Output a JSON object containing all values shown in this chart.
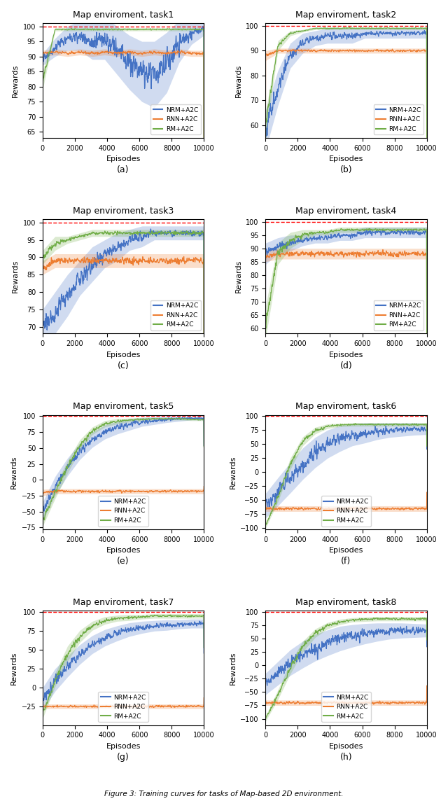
{
  "titles": [
    "Map enviroment, task1",
    "Map enviroment, task2",
    "Map enviroment, task3",
    "Map enviroment, task4",
    "Map enviroment, task5",
    "Map enviroment, task6",
    "Map enviroment, task7",
    "Map enviroment, task8"
  ],
  "subtitles": [
    "(a)",
    "(b)",
    "(c)",
    "(d)",
    "(e)",
    "(f)",
    "(g)",
    "(h)"
  ],
  "xlabel": "Episodes",
  "ylabel": "Rewards",
  "hline_color": "#ff0000",
  "colors": {
    "NRM": "#4472c4",
    "RNN": "#ed7d31",
    "RM": "#70ad47"
  },
  "tasks": {
    "task1": {
      "ylim": [
        63,
        101
      ],
      "yticks": [
        65,
        70,
        75,
        80,
        85,
        90,
        95,
        100
      ],
      "NRM_mean_knots": [
        89,
        93,
        96,
        97,
        95,
        96,
        92,
        88,
        85,
        84,
        88,
        95,
        98,
        99
      ],
      "NRM_std_knots": [
        2,
        3,
        4,
        5,
        6,
        7,
        8,
        9,
        10,
        11,
        10,
        7,
        4,
        2
      ],
      "RNN_mean_knots": [
        91,
        91.5,
        91,
        91.5,
        91,
        91.5,
        91,
        91.5,
        91,
        91.5,
        91,
        91.5,
        91,
        91
      ],
      "RNN_std_knots": [
        1,
        1,
        1,
        1,
        1,
        1,
        1,
        1,
        1,
        1,
        1,
        1,
        1,
        1
      ],
      "RM_mean_knots": [
        82,
        99,
        99,
        99,
        99,
        99,
        99,
        99,
        99,
        99,
        99,
        99,
        99,
        99
      ],
      "RM_std_knots": [
        3,
        0.5,
        0.5,
        0.5,
        0.5,
        0.5,
        0.5,
        0.5,
        0.5,
        0.5,
        0.5,
        0.5,
        0.5,
        0.5
      ],
      "NRM_noise": 2.0,
      "RNN_noise": 0.5,
      "RM_noise": 0.3,
      "legend_loc": "lower center"
    },
    "task2": {
      "ylim": [
        55,
        101
      ],
      "yticks": [
        60,
        70,
        80,
        90,
        100
      ],
      "NRM_mean_knots": [
        58,
        75,
        88,
        93,
        95,
        96,
        96,
        96,
        97,
        97,
        97,
        97,
        97,
        97
      ],
      "NRM_std_knots": [
        8,
        7,
        5,
        4,
        3,
        3,
        3,
        3,
        2,
        2,
        2,
        2,
        2,
        2
      ],
      "RNN_mean_knots": [
        88,
        90,
        90,
        90,
        90,
        90,
        90,
        90,
        90,
        90,
        90,
        90,
        90,
        90
      ],
      "RNN_std_knots": [
        2,
        1,
        1,
        1,
        1,
        1,
        1,
        1,
        1,
        1,
        1,
        1,
        1,
        1
      ],
      "RM_mean_knots": [
        60,
        92,
        97,
        98,
        99,
        99,
        99,
        99,
        99,
        99,
        99,
        99,
        99,
        99
      ],
      "RM_std_knots": [
        5,
        2,
        1,
        0.5,
        0.5,
        0.5,
        0.5,
        0.5,
        0.5,
        0.5,
        0.5,
        0.5,
        0.5,
        0.5
      ],
      "NRM_noise": 1.0,
      "RNN_noise": 0.5,
      "RM_noise": 0.2,
      "legend_loc": "lower center"
    },
    "task3": {
      "ylim": [
        68,
        101
      ],
      "yticks": [
        70,
        75,
        80,
        85,
        90,
        95,
        100
      ],
      "NRM_mean_knots": [
        70,
        74,
        79,
        84,
        88,
        91,
        93,
        95,
        96,
        97,
        97,
        97,
        97,
        97
      ],
      "NRM_std_knots": [
        5,
        6,
        6,
        5,
        5,
        4,
        4,
        3,
        3,
        2,
        2,
        2,
        2,
        2
      ],
      "RNN_mean_knots": [
        87,
        89,
        89,
        89,
        89,
        89,
        89,
        89,
        89,
        89,
        89,
        89,
        89,
        89
      ],
      "RNN_std_knots": [
        2,
        2,
        2,
        2,
        2,
        2,
        2,
        2,
        2,
        2,
        2,
        2,
        2,
        2
      ],
      "RM_mean_knots": [
        90,
        94,
        95,
        96,
        97,
        97,
        97,
        97,
        97,
        97,
        97,
        97,
        97,
        97
      ],
      "RM_std_knots": [
        2,
        2,
        1,
        1,
        1,
        1,
        1,
        1,
        1,
        1,
        1,
        1,
        1,
        1
      ],
      "NRM_noise": 1.5,
      "RNN_noise": 1.0,
      "RM_noise": 0.5,
      "legend_loc": "lower center"
    },
    "task4": {
      "ylim": [
        58,
        101
      ],
      "yticks": [
        60,
        65,
        70,
        75,
        80,
        85,
        90,
        95,
        100
      ],
      "NRM_mean_knots": [
        88,
        91,
        92,
        93,
        94,
        94,
        95,
        95,
        96,
        96,
        96,
        96,
        96,
        96
      ],
      "NRM_std_knots": [
        4,
        3,
        3,
        2,
        2,
        2,
        2,
        2,
        2,
        2,
        2,
        2,
        2,
        2
      ],
      "RNN_mean_knots": [
        87,
        88,
        88,
        88,
        88,
        88,
        88,
        88,
        88,
        88,
        88,
        88,
        88,
        88
      ],
      "RNN_std_knots": [
        2,
        2,
        2,
        2,
        2,
        2,
        2,
        2,
        2,
        2,
        2,
        2,
        2,
        2
      ],
      "RM_mean_knots": [
        62,
        88,
        93,
        95,
        96,
        96,
        97,
        97,
        97,
        97,
        97,
        97,
        97,
        97
      ],
      "RM_std_knots": [
        6,
        4,
        3,
        2,
        1,
        1,
        1,
        1,
        1,
        1,
        1,
        1,
        1,
        1
      ],
      "NRM_noise": 1.0,
      "RNN_noise": 0.8,
      "RM_noise": 0.3,
      "legend_loc": "lower center"
    },
    "task5": {
      "ylim": [
        -78,
        102
      ],
      "yticks": [
        -75,
        -50,
        -25,
        0,
        25,
        50,
        75,
        100
      ],
      "NRM_mean_knots": [
        -50,
        -10,
        20,
        45,
        63,
        75,
        82,
        87,
        91,
        93,
        95,
        96,
        97,
        97
      ],
      "NRM_std_knots": [
        15,
        15,
        14,
        13,
        12,
        11,
        10,
        9,
        7,
        6,
        5,
        4,
        3,
        3
      ],
      "RNN_mean_knots": [
        -20,
        -18,
        -18,
        -18,
        -18,
        -18,
        -18,
        -18,
        -18,
        -18,
        -18,
        -18,
        -18,
        -18
      ],
      "RNN_std_knots": [
        5,
        4,
        4,
        4,
        4,
        4,
        4,
        4,
        4,
        4,
        4,
        4,
        4,
        4
      ],
      "RM_mean_knots": [
        -65,
        -20,
        20,
        55,
        77,
        88,
        92,
        94,
        95,
        96,
        96,
        96,
        95,
        95
      ],
      "RM_std_knots": [
        8,
        10,
        10,
        8,
        6,
        5,
        4,
        3,
        3,
        2,
        2,
        2,
        2,
        2
      ],
      "NRM_noise": 3.0,
      "RNN_noise": 2.0,
      "RM_noise": 1.0,
      "legend_loc": "lower center"
    },
    "task6": {
      "ylim": [
        -102,
        102
      ],
      "yticks": [
        -100,
        -75,
        -50,
        -25,
        0,
        25,
        50,
        75,
        100
      ],
      "NRM_mean_knots": [
        -60,
        -35,
        -10,
        15,
        35,
        50,
        60,
        67,
        70,
        73,
        75,
        76,
        77,
        77
      ],
      "NRM_std_knots": [
        22,
        25,
        27,
        28,
        27,
        25,
        23,
        20,
        18,
        15,
        13,
        12,
        11,
        10
      ],
      "RNN_mean_knots": [
        -65,
        -65,
        -65,
        -65,
        -65,
        -65,
        -65,
        -65,
        -65,
        -65,
        -65,
        -65,
        -65,
        -65
      ],
      "RNN_std_knots": [
        5,
        5,
        5,
        5,
        5,
        5,
        5,
        5,
        5,
        5,
        5,
        5,
        5,
        5
      ],
      "RM_mean_knots": [
        -95,
        -45,
        15,
        55,
        74,
        82,
        84,
        85,
        85,
        85,
        85,
        85,
        85,
        85
      ],
      "RM_std_knots": [
        5,
        8,
        10,
        8,
        6,
        4,
        3,
        3,
        3,
        3,
        3,
        3,
        3,
        3
      ],
      "NRM_noise": 4.0,
      "RNN_noise": 2.0,
      "RM_noise": 1.0,
      "legend_loc": "lower center"
    },
    "task7": {
      "ylim": [
        -50,
        102
      ],
      "yticks": [
        -25,
        0,
        25,
        50,
        75,
        100
      ],
      "NRM_mean_knots": [
        -15,
        10,
        28,
        44,
        57,
        66,
        72,
        77,
        80,
        82,
        83,
        84,
        85,
        85
      ],
      "NRM_std_knots": [
        15,
        15,
        14,
        13,
        12,
        11,
        10,
        9,
        8,
        7,
        7,
        6,
        6,
        6
      ],
      "RNN_mean_knots": [
        -25,
        -25,
        -25,
        -25,
        -25,
        -25,
        -25,
        -25,
        -25,
        -25,
        -25,
        -25,
        -25,
        -25
      ],
      "RNN_std_knots": [
        3,
        3,
        3,
        3,
        3,
        3,
        3,
        3,
        3,
        3,
        3,
        3,
        3,
        3
      ],
      "RM_mean_knots": [
        -35,
        10,
        45,
        68,
        82,
        89,
        92,
        93,
        94,
        95,
        95,
        95,
        95,
        95
      ],
      "RM_std_knots": [
        6,
        9,
        10,
        8,
        6,
        5,
        4,
        4,
        3,
        3,
        3,
        3,
        3,
        3
      ],
      "NRM_noise": 3.0,
      "RNN_noise": 1.5,
      "RM_noise": 1.0,
      "legend_loc": "lower center"
    },
    "task8": {
      "ylim": [
        -112,
        102
      ],
      "yticks": [
        -100,
        -75,
        -50,
        -25,
        0,
        25,
        50,
        75,
        100
      ],
      "NRM_mean_knots": [
        -35,
        -15,
        5,
        20,
        33,
        42,
        50,
        55,
        59,
        62,
        64,
        65,
        65,
        65
      ],
      "NRM_std_knots": [
        20,
        22,
        24,
        25,
        25,
        24,
        23,
        21,
        19,
        17,
        15,
        14,
        13,
        12
      ],
      "RNN_mean_knots": [
        -70,
        -70,
        -70,
        -70,
        -70,
        -70,
        -70,
        -70,
        -70,
        -70,
        -70,
        -70,
        -70,
        -70
      ],
      "RNN_std_knots": [
        5,
        5,
        5,
        5,
        5,
        5,
        5,
        5,
        5,
        5,
        5,
        5,
        5,
        5
      ],
      "RM_mean_knots": [
        -100,
        -55,
        -5,
        35,
        60,
        74,
        81,
        85,
        86,
        87,
        87,
        87,
        87,
        87
      ],
      "RM_std_knots": [
        5,
        9,
        11,
        10,
        8,
        6,
        5,
        4,
        4,
        4,
        4,
        4,
        4,
        4
      ],
      "NRM_noise": 4.0,
      "RNN_noise": 2.0,
      "RM_noise": 1.0,
      "legend_loc": "lower center"
    }
  }
}
